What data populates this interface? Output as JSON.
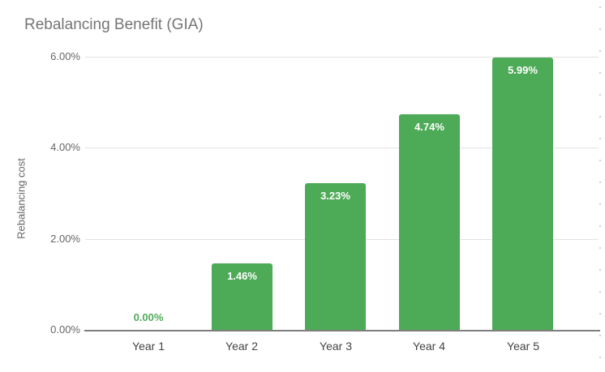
{
  "chart_data": {
    "type": "bar",
    "title": "Rebalancing Benefit (GIA)",
    "categories": [
      "Year 1",
      "Year 2",
      "Year 3",
      "Year 4",
      "Year 5"
    ],
    "values": [
      0.0,
      1.46,
      3.23,
      4.74,
      5.99
    ],
    "data_labels": [
      "0.00%",
      "1.46%",
      "3.23%",
      "4.74%",
      "5.99%"
    ],
    "xlabel": "",
    "ylabel": "Rebalancing cost",
    "ylim": [
      0,
      6
    ],
    "y_ticks": [
      {
        "value": 0,
        "label": "0.00%"
      },
      {
        "value": 2,
        "label": "2.00%"
      },
      {
        "value": 4,
        "label": "4.00%"
      },
      {
        "value": 6,
        "label": "6.00%"
      }
    ],
    "grid": true,
    "legend": "none",
    "colors": {
      "bar": "#4daa57",
      "title": "#757575",
      "axis-text": "#666666",
      "category-text": "#424242",
      "gridline": "#e2e2e2",
      "baseline": "#7d7d7d",
      "label-inside": "#ffffff"
    }
  }
}
